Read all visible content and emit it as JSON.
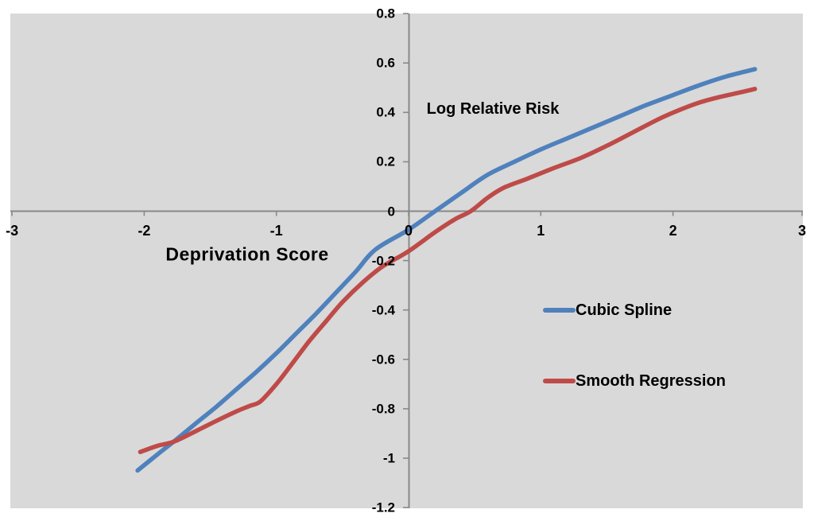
{
  "chart": {
    "colors": {
      "background": "#ffffff",
      "plot_background": "#d9d9d9",
      "axis": "#898989",
      "text": "#000000"
    }
  },
  "chart_data": {
    "type": "line",
    "title": "",
    "xlabel": "Deprivation Score",
    "ylabel": "Log Relative Risk",
    "xlim": [
      -3,
      3
    ],
    "ylim": [
      -1.2,
      0.8
    ],
    "grid": false,
    "legend_position": "right-middle",
    "x_ticks": {
      "values": [
        -3,
        -2,
        -1,
        0,
        1,
        2,
        3
      ],
      "labels": [
        "-3",
        "-2",
        "-1",
        "0",
        "1",
        "2",
        "3"
      ]
    },
    "y_ticks": {
      "values": [
        0.8,
        0.6,
        0.4,
        0.2,
        0,
        -0.2,
        -0.4,
        -0.6,
        -0.8,
        -1,
        -1.2
      ],
      "labels": [
        "0.8",
        "0.6",
        "0.4",
        "0.2",
        "0",
        "-0.2",
        "-0.4",
        "-0.6",
        "-0.8",
        "-1",
        "-1.2"
      ]
    },
    "series": [
      {
        "name": "Cubic Spline",
        "color": "#4f81bd",
        "points": [
          [
            -2.05,
            -1.05
          ],
          [
            -1.9,
            -0.985
          ],
          [
            -1.77,
            -0.93
          ],
          [
            -1.6,
            -0.855
          ],
          [
            -1.45,
            -0.79
          ],
          [
            -1.3,
            -0.72
          ],
          [
            -1.15,
            -0.65
          ],
          [
            -1.0,
            -0.575
          ],
          [
            -0.85,
            -0.495
          ],
          [
            -0.7,
            -0.415
          ],
          [
            -0.55,
            -0.33
          ],
          [
            -0.4,
            -0.245
          ],
          [
            -0.25,
            -0.155
          ],
          [
            0,
            -0.075
          ],
          [
            0.2,
            0.0
          ],
          [
            0.4,
            0.075
          ],
          [
            0.6,
            0.148
          ],
          [
            0.8,
            0.2
          ],
          [
            1.0,
            0.25
          ],
          [
            1.2,
            0.295
          ],
          [
            1.4,
            0.34
          ],
          [
            1.6,
            0.385
          ],
          [
            1.8,
            0.43
          ],
          [
            2.0,
            0.47
          ],
          [
            2.2,
            0.51
          ],
          [
            2.4,
            0.545
          ],
          [
            2.62,
            0.575
          ]
        ]
      },
      {
        "name": "Smooth Regression",
        "color": "#be4b48",
        "points": [
          [
            -2.03,
            -0.975
          ],
          [
            -1.9,
            -0.95
          ],
          [
            -1.77,
            -0.932
          ],
          [
            -1.6,
            -0.888
          ],
          [
            -1.45,
            -0.848
          ],
          [
            -1.3,
            -0.81
          ],
          [
            -1.2,
            -0.788
          ],
          [
            -1.12,
            -0.77
          ],
          [
            -1.0,
            -0.7
          ],
          [
            -0.88,
            -0.617
          ],
          [
            -0.75,
            -0.525
          ],
          [
            -0.62,
            -0.443
          ],
          [
            -0.5,
            -0.368
          ],
          [
            -0.35,
            -0.29
          ],
          [
            -0.2,
            -0.225
          ],
          [
            0,
            -0.162
          ],
          [
            0.2,
            -0.085
          ],
          [
            0.35,
            -0.033
          ],
          [
            0.47,
            0.0
          ],
          [
            0.6,
            0.055
          ],
          [
            0.72,
            0.095
          ],
          [
            0.9,
            0.132
          ],
          [
            1.1,
            0.175
          ],
          [
            1.3,
            0.215
          ],
          [
            1.5,
            0.265
          ],
          [
            1.7,
            0.32
          ],
          [
            1.9,
            0.375
          ],
          [
            2.05,
            0.41
          ],
          [
            2.2,
            0.44
          ],
          [
            2.35,
            0.462
          ],
          [
            2.5,
            0.48
          ],
          [
            2.62,
            0.495
          ]
        ]
      }
    ]
  }
}
